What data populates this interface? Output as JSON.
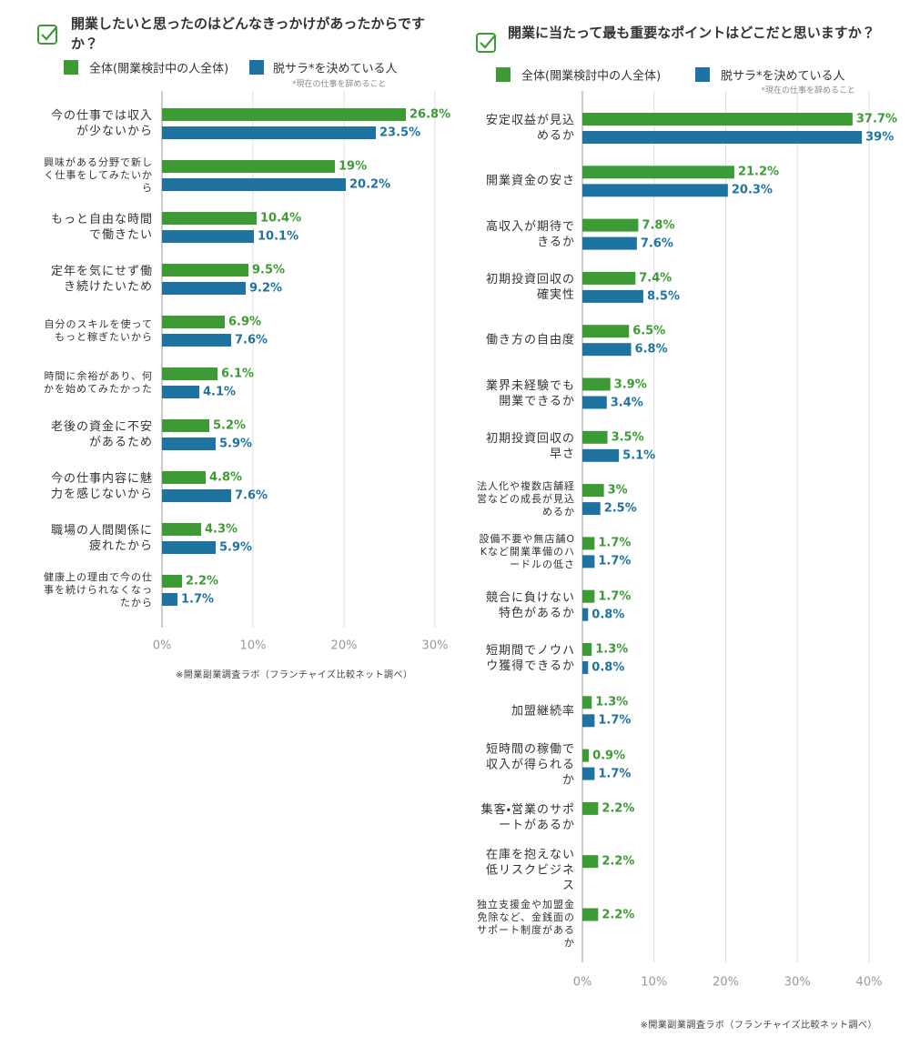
{
  "chart_data": [
    {
      "type": "bar",
      "title": "開業したいと思ったのはどんなきっかけがあったからですか？",
      "note": "*現在の仕事を辞めること",
      "source": "※開業副業調査ラボ（フランチャイズ比較ネット調べ）",
      "categories": [
        "今の仕事では収入が少ないから",
        "興味がある分野で新しく仕事をしてみたいから",
        "もっと自由な時間で働きたい",
        "定年を気にせず働き続けたいため",
        "自分のスキルを使ってもっと稼ぎたいから",
        "時間に余裕があり、何かを始めてみたかった",
        "老後の資金に不安があるため",
        "今の仕事内容に魅力を感じないから",
        "職場の人間関係に疲れたから",
        "健康上の理由で今の仕事を続けられなくなったから"
      ],
      "series": [
        {
          "name": "全体(開業検討中の人全体)",
          "color": "#3d9b35",
          "values": [
            26.8,
            19,
            10.4,
            9.5,
            6.9,
            6.1,
            5.2,
            4.8,
            4.3,
            2.2
          ],
          "value_labels": [
            "26.8%",
            "19%",
            "10.4%",
            "9.5%",
            "6.9%",
            "6.1%",
            "5.2%",
            "4.8%",
            "4.3%",
            "2.2%"
          ]
        },
        {
          "name": "脱サラ*を決めている人",
          "color": "#1f73a1",
          "values": [
            23.5,
            20.2,
            10.1,
            9.2,
            7.6,
            4.1,
            5.9,
            7.6,
            5.9,
            1.7
          ],
          "value_labels": [
            "23.5%",
            "20.2%",
            "10.1%",
            "9.2%",
            "7.6%",
            "4.1%",
            "5.9%",
            "7.6%",
            "5.9%",
            "1.7%"
          ]
        }
      ],
      "xlim": [
        0,
        30
      ],
      "xticks": [
        {
          "value": 0,
          "label": "0%"
        },
        {
          "value": 10,
          "label": "10%"
        },
        {
          "value": 20,
          "label": "20%"
        },
        {
          "value": 30,
          "label": "30%"
        }
      ],
      "grid": true
    },
    {
      "type": "bar",
      "title": "開業に当たって最も重要なポイントはどこだと思いますか？",
      "note": "*現在の仕事を辞めること",
      "source": "※開業副業調査ラボ（フランチャイズ比較ネット調べ）",
      "categories": [
        "安定収益が見込めるか",
        "開業資金の安さ",
        "高収入が期待できるか",
        "初期投資回収の確実性",
        "働き方の自由度",
        "業界未経験でも開業できるか",
        "初期投資回収の早さ",
        "法人化や複数店舗経営などの成長が見込めるか",
        "設備不要や無店舗OKなど開業準備のハードルの低さ",
        "競合に負けない特色があるか",
        "短期間でノウハウ獲得できるか",
        "加盟継続率",
        "短時間の稼働で収入が得られるか",
        "集客・営業のサポートがあるか",
        "在庫を抱えない低リスクビジネス",
        "独立支援金や加盟金免除など、金銭面のサポート制度があるか"
      ],
      "series": [
        {
          "name": "全体(開業検討中の人全体)",
          "color": "#3d9b35",
          "values": [
            37.7,
            21.2,
            7.8,
            7.4,
            6.5,
            3.9,
            3.5,
            3,
            1.7,
            1.7,
            1.3,
            1.3,
            0.9,
            2.2,
            2.2,
            2.2
          ],
          "value_labels": [
            "37.7%",
            "21.2%",
            "7.8%",
            "7.4%",
            "6.5%",
            "3.9%",
            "3.5%",
            "3%",
            "1.7%",
            "1.7%",
            "1.3%",
            "1.3%",
            "0.9%",
            "2.2%",
            "2.2%",
            "2.2%"
          ]
        },
        {
          "name": "脱サラ*を決めている人",
          "color": "#1f73a1",
          "values": [
            39,
            20.3,
            7.6,
            8.5,
            6.8,
            3.4,
            5.1,
            2.5,
            1.7,
            0.8,
            0.8,
            1.7,
            1.7,
            null,
            null,
            null
          ],
          "value_labels": [
            "39%",
            "20.3%",
            "7.6%",
            "8.5%",
            "6.8%",
            "3.4%",
            "5.1%",
            "2.5%",
            "1.7%",
            "0.8%",
            "0.8%",
            "1.7%",
            "1.7%",
            null,
            null,
            null
          ]
        }
      ],
      "xlim": [
        0,
        40
      ],
      "xticks": [
        {
          "value": 0,
          "label": "0%"
        },
        {
          "value": 10,
          "label": "10%"
        },
        {
          "value": 20,
          "label": "20%"
        },
        {
          "value": 30,
          "label": "30%"
        },
        {
          "value": 40,
          "label": "40%"
        }
      ],
      "grid": true
    }
  ]
}
